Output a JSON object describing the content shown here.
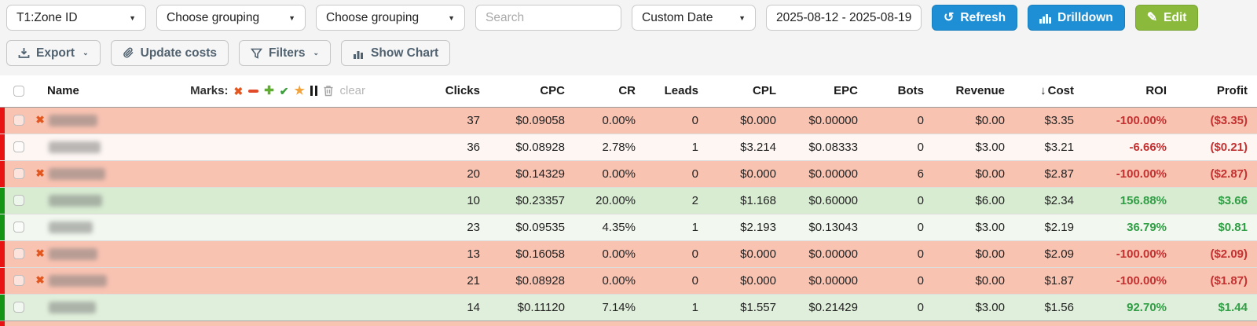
{
  "toolbar": {
    "grouping_1": "T1:Zone ID",
    "grouping_2": "Choose grouping",
    "grouping_3": "Choose grouping",
    "search_placeholder": "Search",
    "date_preset": "Custom Date",
    "date_range": "2025-08-12 - 2025-08-19",
    "refresh_label": "Refresh",
    "drilldown_label": "Drilldown",
    "edit_label": "Edit",
    "refresh_icon": "↺",
    "edit_icon": "✎",
    "caret": "▼",
    "chevron": "⌄"
  },
  "actions": {
    "export_label": "Export",
    "update_costs_label": "Update costs",
    "filters_label": "Filters",
    "show_chart_label": "Show Chart"
  },
  "table": {
    "headers": {
      "name": "Name",
      "clicks": "Clicks",
      "cpc": "CPC",
      "cr": "CR",
      "leads": "Leads",
      "cpl": "CPL",
      "epc": "EPC",
      "bots": "Bots",
      "revenue": "Revenue",
      "cost": "Cost",
      "roi": "ROI",
      "profit": "Profit"
    },
    "sort": {
      "column": "cost",
      "direction": "desc",
      "arrow": "↓"
    },
    "marks_label": "Marks:",
    "marks_icons": [
      "x-mark",
      "minus-mark",
      "plus-mark",
      "check-mark",
      "star-mark",
      "pause-mark",
      "trash"
    ],
    "clear_label": "clear",
    "rows": [
      {
        "marked": true,
        "name_redacted": true,
        "name_blur_width": 62,
        "row_bg": "#f9c3b2",
        "strip_color": "#e81414",
        "clicks": "37",
        "cpc": "$0.09058",
        "cr": "0.00%",
        "leads": "0",
        "cpl": "$0.000",
        "epc": "$0.00000",
        "bots": "0",
        "revenue": "$0.00",
        "cost": "$3.35",
        "roi": "-100.00%",
        "profit": "($3.35)",
        "profit_positive": false
      },
      {
        "marked": false,
        "name_redacted": true,
        "name_blur_width": 66,
        "row_bg": "#fdf6f3",
        "strip_color": "#e81414",
        "clicks": "36",
        "cpc": "$0.08928",
        "cr": "2.78%",
        "leads": "1",
        "cpl": "$3.214",
        "epc": "$0.08333",
        "bots": "0",
        "revenue": "$3.00",
        "cost": "$3.21",
        "roi": "-6.66%",
        "profit": "($0.21)",
        "profit_positive": false
      },
      {
        "marked": true,
        "name_redacted": true,
        "name_blur_width": 72,
        "row_bg": "#f9c3b2",
        "strip_color": "#e81414",
        "clicks": "20",
        "cpc": "$0.14329",
        "cr": "0.00%",
        "leads": "0",
        "cpl": "$0.000",
        "epc": "$0.00000",
        "bots": "6",
        "revenue": "$0.00",
        "cost": "$2.87",
        "roi": "-100.00%",
        "profit": "($2.87)",
        "profit_positive": false
      },
      {
        "marked": false,
        "name_redacted": true,
        "name_blur_width": 68,
        "row_bg": "#d8ecd2",
        "strip_color": "#169416",
        "clicks": "10",
        "cpc": "$0.23357",
        "cr": "20.00%",
        "leads": "2",
        "cpl": "$1.168",
        "epc": "$0.60000",
        "bots": "0",
        "revenue": "$6.00",
        "cost": "$2.34",
        "roi": "156.88%",
        "profit": "$3.66",
        "profit_positive": true
      },
      {
        "marked": false,
        "name_redacted": true,
        "name_blur_width": 56,
        "row_bg": "#f2f8ef",
        "strip_color": "#169416",
        "clicks": "23",
        "cpc": "$0.09535",
        "cr": "4.35%",
        "leads": "1",
        "cpl": "$2.193",
        "epc": "$0.13043",
        "bots": "0",
        "revenue": "$3.00",
        "cost": "$2.19",
        "roi": "36.79%",
        "profit": "$0.81",
        "profit_positive": true
      },
      {
        "marked": true,
        "name_redacted": true,
        "name_blur_width": 62,
        "row_bg": "#f9c3b2",
        "strip_color": "#e81414",
        "clicks": "13",
        "cpc": "$0.16058",
        "cr": "0.00%",
        "leads": "0",
        "cpl": "$0.000",
        "epc": "$0.00000",
        "bots": "0",
        "revenue": "$0.00",
        "cost": "$2.09",
        "roi": "-100.00%",
        "profit": "($2.09)",
        "profit_positive": false
      },
      {
        "marked": true,
        "name_redacted": true,
        "name_blur_width": 74,
        "row_bg": "#f9c3b2",
        "strip_color": "#e81414",
        "clicks": "21",
        "cpc": "$0.08928",
        "cr": "0.00%",
        "leads": "0",
        "cpl": "$0.000",
        "epc": "$0.00000",
        "bots": "0",
        "revenue": "$0.00",
        "cost": "$1.87",
        "roi": "-100.00%",
        "profit": "($1.87)",
        "profit_positive": false
      },
      {
        "marked": false,
        "name_redacted": true,
        "name_blur_width": 60,
        "row_bg": "#e0efdb",
        "strip_color": "#169416",
        "clicks": "14",
        "cpc": "$0.11120",
        "cr": "7.14%",
        "leads": "1",
        "cpl": "$1.557",
        "epc": "$0.21429",
        "bots": "0",
        "revenue": "$3.00",
        "cost": "$1.56",
        "roi": "92.70%",
        "profit": "$1.44",
        "profit_positive": true
      }
    ],
    "partial_next_row": {
      "row_bg": "#f9c3b2",
      "strip_color": "#e81414"
    }
  },
  "colors": {
    "accent_blue": "#1e8fd5",
    "accent_green": "#8ab93c",
    "loss_row": "#f9c3b2",
    "win_row": "#d8ecd2",
    "loss_strip": "#e81414",
    "win_strip": "#169416",
    "negative_text": "#c43131",
    "positive_text": "#2f9e44",
    "mark_x": "#e2571f",
    "mark_star": "#f3a33c"
  }
}
